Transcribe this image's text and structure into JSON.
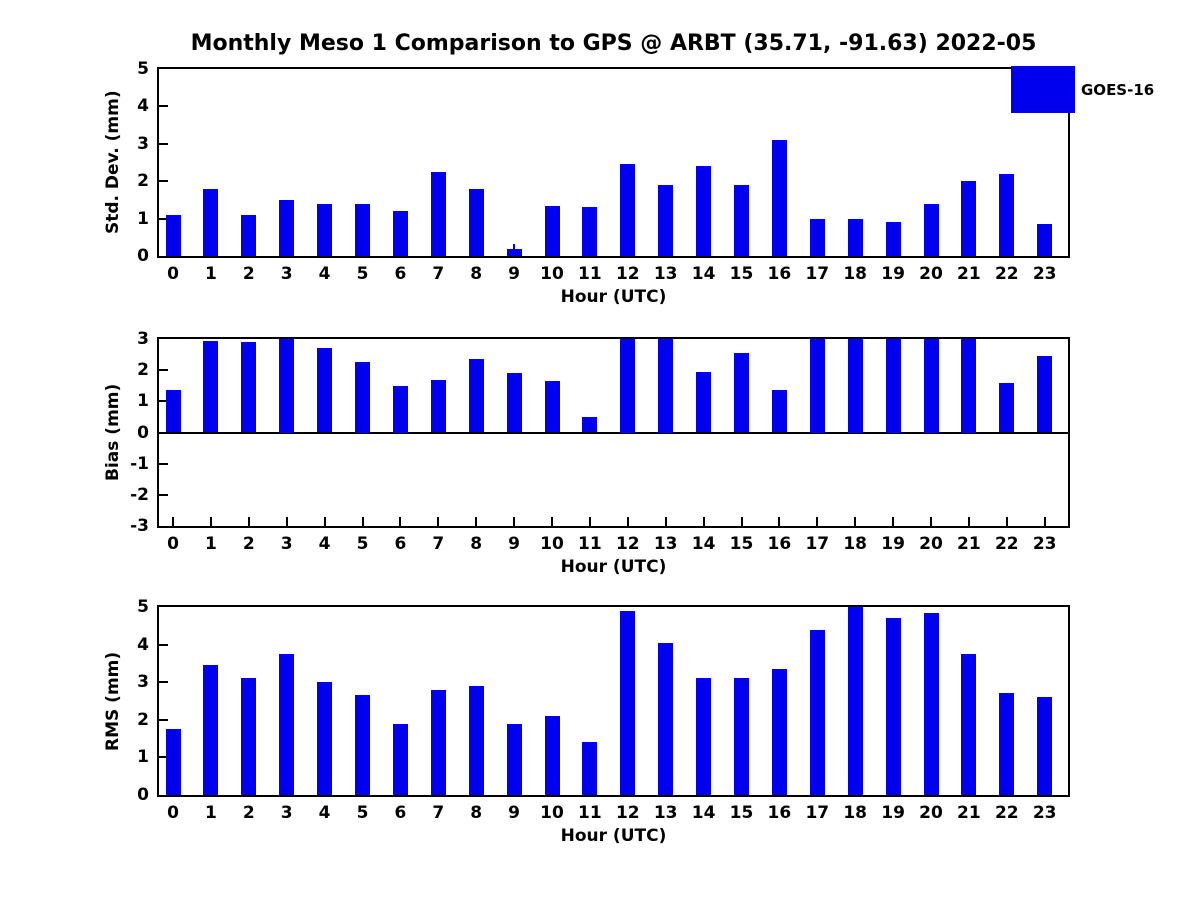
{
  "title": "Monthly Meso 1 Comparison to GPS @ ARBT (35.71, -91.63) 2022-05",
  "legend": {
    "label": "GOES-16",
    "color": "#0000EE",
    "position": "upper right"
  },
  "chart_data": [
    {
      "type": "bar",
      "name": "std-dev",
      "title": "",
      "ylabel": "Std. Dev. (mm)",
      "xlabel": "Hour (UTC)",
      "ylim": [
        0,
        5
      ],
      "yticks": [
        0,
        1,
        2,
        3,
        4,
        5
      ],
      "grid": false,
      "legend_entries": [
        "GOES-16"
      ],
      "categories": [
        "0",
        "1",
        "2",
        "3",
        "4",
        "5",
        "6",
        "7",
        "8",
        "9",
        "10",
        "11",
        "12",
        "13",
        "14",
        "15",
        "16",
        "17",
        "18",
        "19",
        "20",
        "21",
        "22",
        "23"
      ],
      "values": [
        1.1,
        1.8,
        1.1,
        1.5,
        1.4,
        1.4,
        1.2,
        2.25,
        1.8,
        0.2,
        1.35,
        1.3,
        2.45,
        1.9,
        2.4,
        1.9,
        3.1,
        1.0,
        1.0,
        0.9,
        1.4,
        2.0,
        2.2,
        0.85
      ],
      "spike": {
        "hour_index": 9,
        "top_value": 0.33
      }
    },
    {
      "type": "bar",
      "name": "bias",
      "title": "",
      "ylabel": "Bias (mm)",
      "xlabel": "Hour (UTC)",
      "ylim": [
        -3,
        3
      ],
      "yticks": [
        -3,
        -2,
        -1,
        0,
        1,
        2,
        3
      ],
      "grid": false,
      "legend_entries": [
        "GOES-16"
      ],
      "categories": [
        "0",
        "1",
        "2",
        "3",
        "4",
        "5",
        "6",
        "7",
        "8",
        "9",
        "10",
        "11",
        "12",
        "13",
        "14",
        "15",
        "16",
        "17",
        "18",
        "19",
        "20",
        "21",
        "22",
        "23"
      ],
      "values": [
        1.35,
        2.95,
        2.9,
        3.0,
        2.7,
        2.25,
        1.5,
        1.7,
        2.35,
        1.9,
        1.65,
        0.5,
        3.0,
        3.0,
        1.95,
        2.55,
        1.35,
        3.0,
        3.0,
        3.0,
        3.0,
        3.0,
        1.6,
        2.45
      ]
    },
    {
      "type": "bar",
      "name": "rms",
      "title": "",
      "ylabel": "RMS (mm)",
      "xlabel": "Hour (UTC)",
      "ylim": [
        0,
        5
      ],
      "yticks": [
        0,
        1,
        2,
        3,
        4,
        5
      ],
      "grid": false,
      "legend_entries": [
        "GOES-16"
      ],
      "categories": [
        "0",
        "1",
        "2",
        "3",
        "4",
        "5",
        "6",
        "7",
        "8",
        "9",
        "10",
        "11",
        "12",
        "13",
        "14",
        "15",
        "16",
        "17",
        "18",
        "19",
        "20",
        "21",
        "22",
        "23"
      ],
      "values": [
        1.75,
        3.45,
        3.1,
        3.75,
        3.0,
        2.65,
        1.9,
        2.8,
        2.9,
        1.9,
        2.1,
        1.4,
        4.9,
        4.05,
        3.1,
        3.1,
        3.35,
        4.4,
        5.0,
        4.7,
        4.85,
        3.75,
        2.7,
        2.6
      ]
    }
  ]
}
